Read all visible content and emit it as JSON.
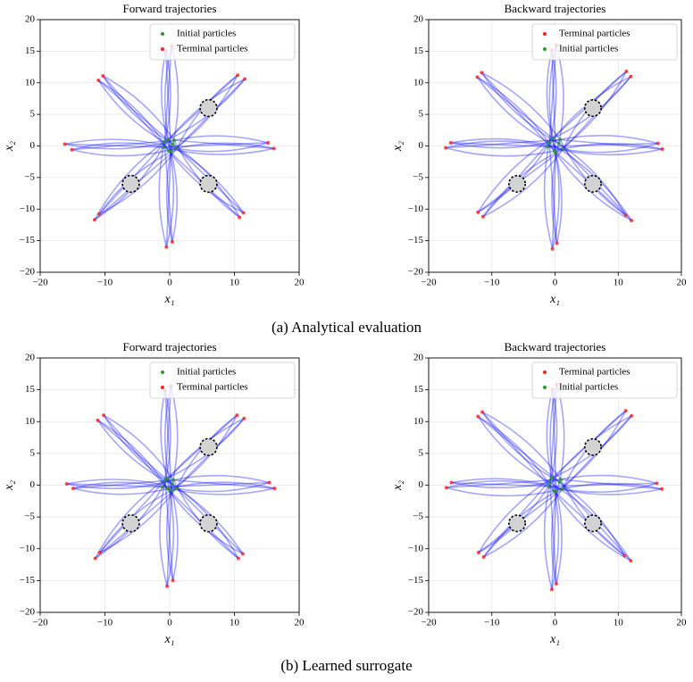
{
  "chart_data": [
    {
      "type": "scatter",
      "title": "Forward trajectories",
      "xlabel": "x₁",
      "ylabel": "x₂",
      "xlim": [
        -20,
        20
      ],
      "ylim": [
        -20,
        20
      ],
      "xticks": [
        {
          "value": -20,
          "label": "−20"
        },
        {
          "value": -10,
          "label": "−10"
        },
        0,
        10,
        20
      ],
      "yticks": [
        {
          "value": -20,
          "label": "−20"
        },
        {
          "value": -15,
          "label": "−15"
        },
        {
          "value": -10,
          "label": "−10"
        },
        {
          "value": -5,
          "label": "−5"
        },
        0,
        5,
        10,
        15,
        20
      ],
      "grid": true,
      "legend": "upper right",
      "trajectory_color": "#0000ff",
      "obstacles": {
        "x": [
          6,
          -6,
          6
        ],
        "y": [
          6,
          -6,
          -6
        ],
        "r": [
          1.3,
          1.3,
          1.3
        ]
      },
      "series": [
        {
          "name": "Initial particles",
          "color": "#2e9b2e",
          "x": [
            0.5,
            -0.8,
            0.2,
            -0.3,
            1.1,
            -1.0,
            0.7,
            -0.2
          ],
          "y": [
            0.3,
            0.6,
            -0.9,
            1.0,
            -0.4,
            -0.2,
            0.9,
            -0.7
          ]
        },
        {
          "name": "Terminal particles",
          "color": "#ff2020",
          "x": [
            0.3,
            -0.6,
            10.5,
            11.6,
            15.2,
            16.1,
            10.8,
            11.4,
            0.4,
            -0.5,
            -10.9,
            -11.6,
            -16.2,
            -15.1,
            -10.3,
            -11.0
          ],
          "y": [
            15.8,
            15.0,
            11.2,
            10.6,
            0.5,
            -0.4,
            -11.3,
            -10.6,
            -15.2,
            -16.0,
            -10.8,
            -11.7,
            0.3,
            -0.6,
            11.1,
            10.4
          ]
        }
      ]
    },
    {
      "type": "scatter",
      "title": "Backward trajectories",
      "xlabel": "x₁",
      "ylabel": "x₂",
      "xlim": [
        -20,
        20
      ],
      "ylim": [
        -20,
        20
      ],
      "xticks": [
        {
          "value": -20,
          "label": "−20"
        },
        {
          "value": -10,
          "label": "−10"
        },
        0,
        10,
        20
      ],
      "yticks": [
        {
          "value": -20,
          "label": "−20"
        },
        {
          "value": -15,
          "label": "−15"
        },
        {
          "value": -10,
          "label": "−10"
        },
        {
          "value": -5,
          "label": "−5"
        },
        0,
        5,
        10,
        15,
        20
      ],
      "grid": true,
      "legend": "upper right",
      "trajectory_color": "#0000ff",
      "obstacles": {
        "x": [
          6,
          -6,
          6
        ],
        "y": [
          6,
          -6,
          -6
        ],
        "r": [
          1.3,
          1.3,
          1.3
        ]
      },
      "series": [
        {
          "name": "Terminal particles",
          "color": "#ff2020",
          "x": [
            0.2,
            -0.5,
            11.3,
            12.0,
            16.3,
            17.0,
            11.2,
            12.1,
            0.3,
            -0.4,
            -11.4,
            -12.2,
            -16.5,
            -17.3,
            -11.6,
            -12.3
          ],
          "y": [
            16.0,
            15.2,
            11.8,
            11.0,
            0.4,
            -0.5,
            -11.0,
            -11.8,
            -15.4,
            -16.3,
            -11.2,
            -10.5,
            0.5,
            -0.3,
            11.6,
            10.9
          ]
        },
        {
          "name": "Initial particles",
          "color": "#2e9b2e",
          "x": [
            0.6,
            -0.9,
            0.1,
            -0.4,
            1.3,
            -1.2,
            0.8,
            -0.1
          ],
          "y": [
            0.4,
            0.5,
            -1.1,
            1.2,
            -0.5,
            -0.1,
            1.0,
            -0.8
          ]
        }
      ]
    },
    {
      "type": "scatter",
      "title": "Forward trajectories",
      "xlabel": "x₁",
      "ylabel": "x₂",
      "xlim": [
        -20,
        20
      ],
      "ylim": [
        -20,
        20
      ],
      "xticks": [
        {
          "value": -20,
          "label": "−20"
        },
        {
          "value": -10,
          "label": "−10"
        },
        0,
        10,
        20
      ],
      "yticks": [
        {
          "value": -20,
          "label": "−20"
        },
        {
          "value": -15,
          "label": "−15"
        },
        {
          "value": -10,
          "label": "−10"
        },
        {
          "value": -5,
          "label": "−5"
        },
        0,
        5,
        10,
        15,
        20
      ],
      "grid": true,
      "legend": "upper right",
      "trajectory_color": "#0000ff",
      "obstacles": {
        "x": [
          6,
          -6,
          6
        ],
        "y": [
          6,
          -6,
          -6
        ],
        "r": [
          1.3,
          1.3,
          1.3
        ]
      },
      "series": [
        {
          "name": "Initial particles",
          "color": "#2e9b2e",
          "x": [
            0.4,
            -0.7,
            0.3,
            -0.4,
            1.0,
            -1.1,
            0.6,
            -0.3
          ],
          "y": [
            0.2,
            0.7,
            -0.8,
            1.1,
            -0.5,
            -0.3,
            0.8,
            -0.6
          ]
        },
        {
          "name": "Terminal particles",
          "color": "#ff2020",
          "x": [
            0.2,
            -0.7,
            10.4,
            11.5,
            15.4,
            16.2,
            10.6,
            11.3,
            0.5,
            -0.4,
            -10.8,
            -11.5,
            -15.9,
            -14.9,
            -10.2,
            -11.1
          ],
          "y": [
            15.6,
            14.9,
            11.0,
            10.5,
            0.4,
            -0.5,
            -11.5,
            -10.8,
            -15.0,
            -15.9,
            -10.6,
            -11.5,
            0.2,
            -0.5,
            11.0,
            10.2
          ]
        }
      ]
    },
    {
      "type": "scatter",
      "title": "Backward trajectories",
      "xlabel": "x₁",
      "ylabel": "x₂",
      "xlim": [
        -20,
        20
      ],
      "ylim": [
        -20,
        20
      ],
      "xticks": [
        {
          "value": -20,
          "label": "−20"
        },
        {
          "value": -10,
          "label": "−10"
        },
        0,
        10,
        20
      ],
      "yticks": [
        {
          "value": -20,
          "label": "−20"
        },
        {
          "value": -15,
          "label": "−15"
        },
        {
          "value": -10,
          "label": "−10"
        },
        {
          "value": -5,
          "label": "−5"
        },
        0,
        5,
        10,
        15,
        20
      ],
      "grid": true,
      "legend": "upper right",
      "trajectory_color": "#0000ff",
      "obstacles": {
        "x": [
          6,
          -6,
          6
        ],
        "y": [
          6,
          -6,
          -6
        ],
        "r": [
          1.3,
          1.3,
          1.3
        ]
      },
      "series": [
        {
          "name": "Terminal particles",
          "color": "#ff2020",
          "x": [
            0.3,
            -0.4,
            11.2,
            12.1,
            16.1,
            16.9,
            11.0,
            12.0,
            0.2,
            -0.5,
            -11.3,
            -12.1,
            -16.4,
            -17.2,
            -11.5,
            -12.2
          ],
          "y": [
            15.9,
            15.1,
            11.7,
            10.9,
            0.3,
            -0.6,
            -11.1,
            -11.9,
            -15.5,
            -16.4,
            -11.3,
            -10.6,
            0.4,
            -0.4,
            11.5,
            10.8
          ]
        },
        {
          "name": "Initial particles",
          "color": "#2e9b2e",
          "x": [
            0.7,
            -0.8,
            0.2,
            -0.5,
            1.2,
            -1.0,
            0.9,
            -0.2
          ],
          "y": [
            0.5,
            0.4,
            -1.0,
            1.1,
            -0.6,
            -0.2,
            0.9,
            -0.9
          ]
        }
      ]
    }
  ],
  "captions": [
    "(a) Analytical evaluation",
    "(b) Learned surrogate"
  ]
}
